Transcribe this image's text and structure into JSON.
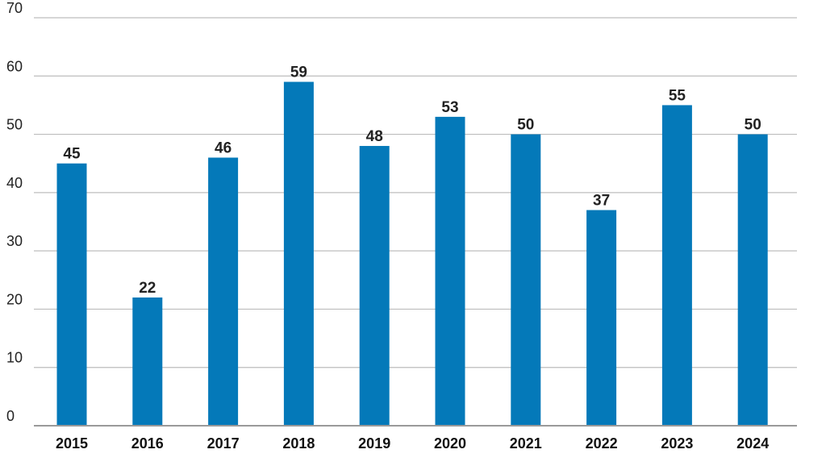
{
  "chart_data": {
    "type": "bar",
    "title": "",
    "xlabel": "",
    "ylabel": "",
    "categories": [
      "2015",
      "2016",
      "2017",
      "2018",
      "2019",
      "2020",
      "2021",
      "2022",
      "2023",
      "2024"
    ],
    "values": [
      45,
      22,
      46,
      59,
      48,
      53,
      50,
      37,
      55,
      50
    ],
    "ylim": [
      0,
      70
    ],
    "yticks": [
      0,
      10,
      20,
      30,
      40,
      50,
      60,
      70
    ],
    "grid": true,
    "legend": "none",
    "bar_color": "#0479B9",
    "data_labels": true
  }
}
